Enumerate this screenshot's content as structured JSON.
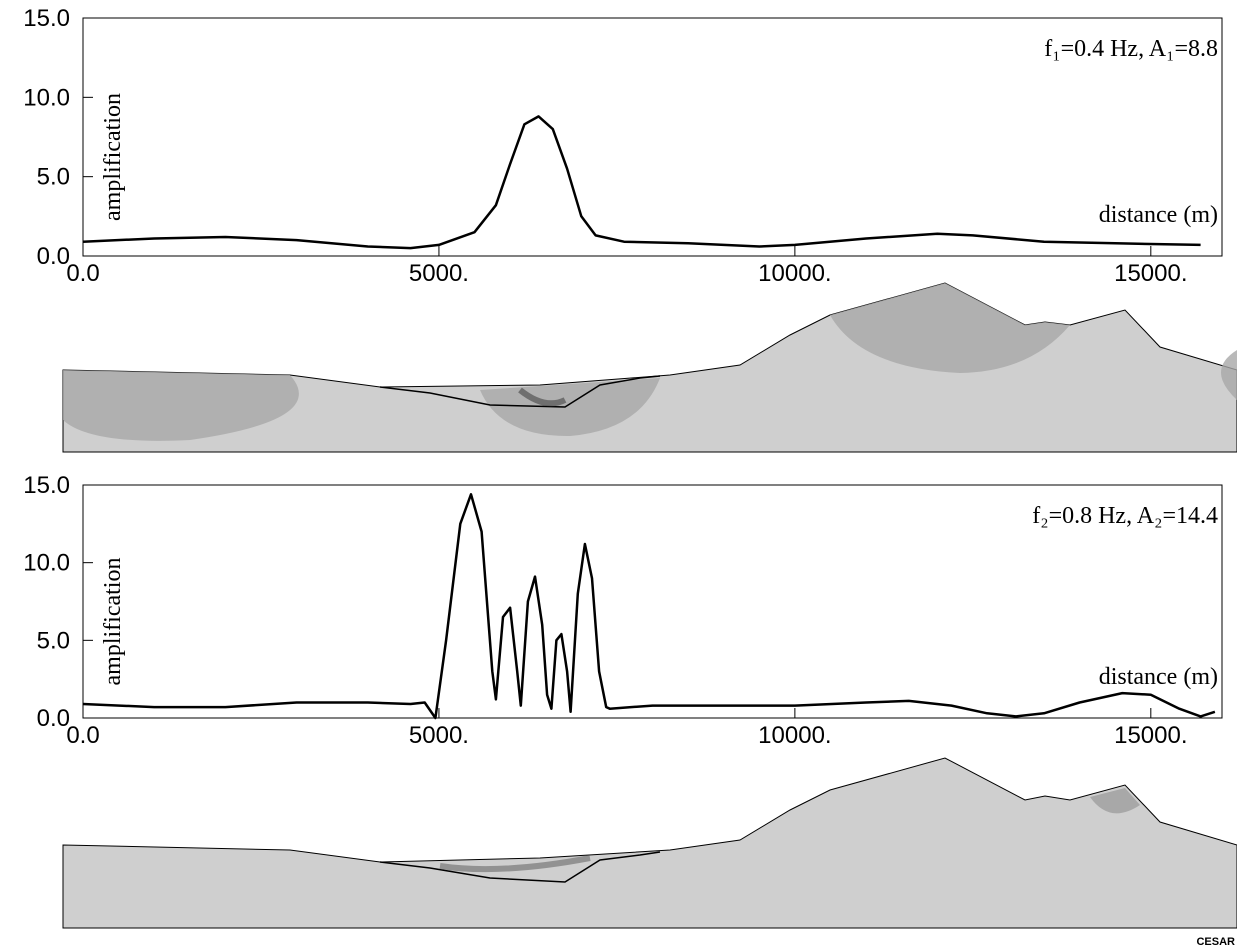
{
  "chart_data": [
    {
      "type": "line",
      "annotation": "f₁=0.4 Hz, A₁=8.8",
      "ylabel": "amplification",
      "xlabel": "distance (m)",
      "xlim": [
        0,
        16000
      ],
      "ylim": [
        0,
        15
      ],
      "xticks": [
        {
          "value": 0,
          "label": "0.0"
        },
        {
          "value": 5000,
          "label": "5000."
        },
        {
          "value": 10000,
          "label": "10000."
        },
        {
          "value": 15000,
          "label": "15000."
        }
      ],
      "yticks": [
        {
          "value": 0,
          "label": "0.0"
        },
        {
          "value": 5,
          "label": "5.0"
        },
        {
          "value": 10,
          "label": "10.0"
        },
        {
          "value": 15,
          "label": "15.0"
        }
      ],
      "series": [
        {
          "color": "#000000",
          "x": [
            0,
            1000,
            2000,
            3000,
            4000,
            4600,
            5000,
            5500,
            5800,
            6000,
            6200,
            6400,
            6600,
            6800,
            7000,
            7200,
            7600,
            8500,
            9500,
            10000,
            11000,
            12000,
            12500,
            13500,
            14500,
            15700
          ],
          "values": [
            0.9,
            1.1,
            1.2,
            1.0,
            0.6,
            0.5,
            0.7,
            1.5,
            3.2,
            5.8,
            8.3,
            8.8,
            8.0,
            5.5,
            2.5,
            1.3,
            0.9,
            0.8,
            0.6,
            0.7,
            1.1,
            1.4,
            1.3,
            0.9,
            0.8,
            0.7
          ]
        }
      ]
    },
    {
      "type": "line",
      "annotation": "f₂=0.8 Hz, A₂=14.4",
      "ylabel": "amplification",
      "xlabel": "distance (m)",
      "xlim": [
        0,
        16000
      ],
      "ylim": [
        0,
        15
      ],
      "xticks": [
        {
          "value": 0,
          "label": "0.0"
        },
        {
          "value": 5000,
          "label": "5000."
        },
        {
          "value": 10000,
          "label": "10000."
        },
        {
          "value": 15000,
          "label": "15000."
        }
      ],
      "yticks": [
        {
          "value": 0,
          "label": "0.0"
        },
        {
          "value": 5,
          "label": "5.0"
        },
        {
          "value": 10,
          "label": "10.0"
        },
        {
          "value": 15,
          "label": "15.0"
        }
      ],
      "series": [
        {
          "color": "#000000",
          "x": [
            0,
            1000,
            2000,
            3000,
            4000,
            4600,
            4800,
            4950,
            5100,
            5300,
            5450,
            5600,
            5750,
            5800,
            5900,
            6000,
            6100,
            6150,
            6250,
            6350,
            6450,
            6520,
            6580,
            6650,
            6720,
            6800,
            6850,
            6950,
            7050,
            7150,
            7250,
            7350,
            7400,
            8000,
            9000,
            10000,
            11000,
            11600,
            12200,
            12700,
            13100,
            13500,
            14000,
            14600,
            15000,
            15400,
            15700,
            15900
          ],
          "values": [
            0.9,
            0.7,
            0.7,
            1.0,
            1.0,
            0.9,
            1.0,
            0.0,
            5.0,
            12.5,
            14.4,
            12.0,
            3.0,
            1.2,
            6.5,
            7.1,
            3.0,
            0.8,
            7.5,
            9.1,
            6.0,
            1.5,
            0.6,
            5.0,
            5.4,
            3.0,
            0.4,
            8.0,
            11.2,
            9.0,
            3.0,
            0.7,
            0.6,
            0.8,
            0.8,
            0.8,
            1.0,
            1.1,
            0.8,
            0.3,
            0.1,
            0.3,
            1.0,
            1.6,
            1.5,
            0.6,
            0.1,
            0.4
          ]
        }
      ]
    }
  ],
  "logo": "CESAR"
}
